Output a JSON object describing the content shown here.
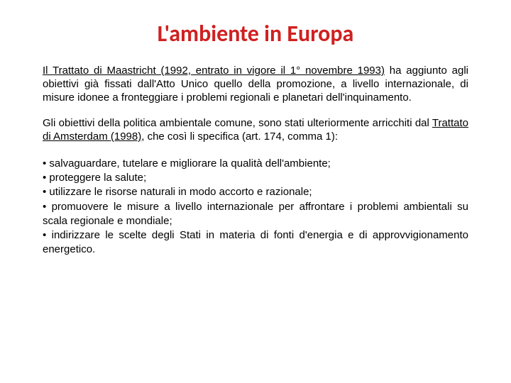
{
  "title": "L'ambiente in Europa",
  "p1_u": "Il Trattato di Maastricht (1992, entrato in vigore il 1° novembre 1993)",
  "p1_rest": " ha aggiunto agli obiettivi già fissati dall'Atto Unico quello della promozione, a livello internazionale, di misure idonee a fronteggiare i problemi regionali e planetari dell'inquinamento.",
  "p2_a": "Gli obiettivi della politica ambientale comune, sono stati ulteriormente arricchiti dal ",
  "p2_u": "Trattato di Amsterdam (1998)",
  "p2_b": ", che così li specifica (art. 174, comma 1):",
  "b1": "• salvaguardare, tutelare e migliorare la qualità dell'ambiente;",
  "b2": "• proteggere la salute;",
  "b3": "• utilizzare le risorse naturali in modo accorto e razionale;",
  "b4": "• promuovere le misure a livello internazionale per affrontare i problemi ambientali su scala regionale e mondiale;",
  "b5": "• indirizzare le scelte degli Stati in materia di fonti d'energia e di approvvigionamento energetico."
}
